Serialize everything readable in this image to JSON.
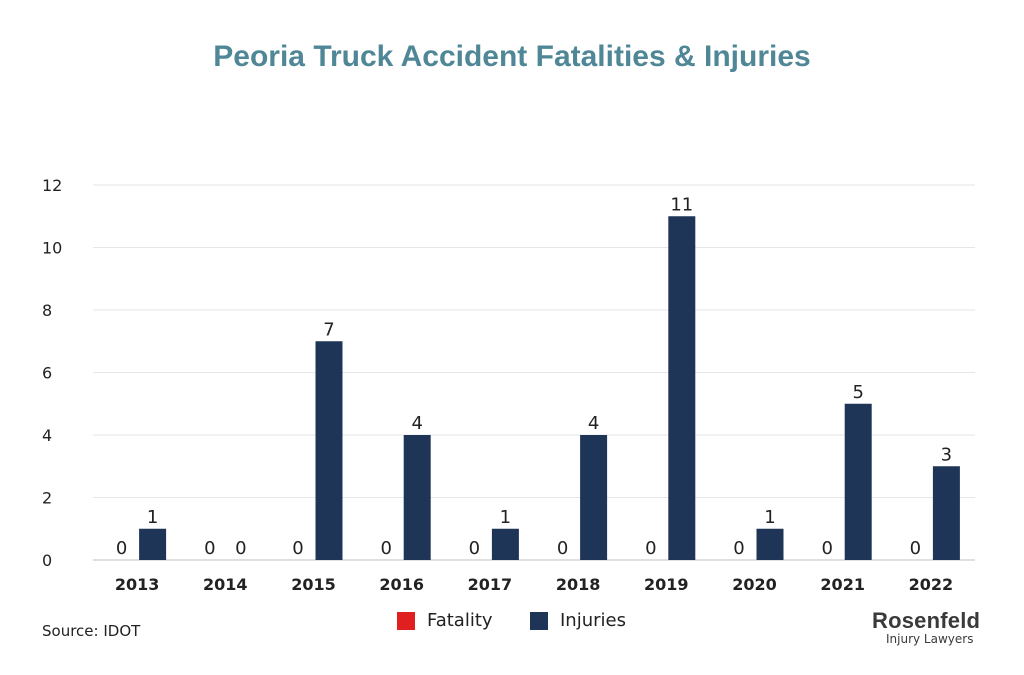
{
  "chart_data": {
    "type": "bar",
    "title": "Peoria Truck Accident Fatalities & Injuries",
    "categories": [
      "2013",
      "2014",
      "2015",
      "2016",
      "2017",
      "2018",
      "2019",
      "2020",
      "2021",
      "2022"
    ],
    "series": [
      {
        "name": "Fatality",
        "color": "#e02020",
        "values": [
          0,
          0,
          0,
          0,
          0,
          0,
          0,
          0,
          0,
          0
        ]
      },
      {
        "name": "Injuries",
        "color": "#1f3557",
        "values": [
          1,
          0,
          7,
          4,
          1,
          4,
          11,
          1,
          5,
          3
        ]
      }
    ],
    "ylim": [
      0,
      12
    ],
    "yticks": [
      0,
      2,
      4,
      6,
      8,
      10,
      12
    ],
    "grid": true,
    "legend": "bottom",
    "data_labels": true
  },
  "footer": {
    "source": "Source: IDOT"
  },
  "brand": {
    "name": "Rosenfeld",
    "sub": "Injury Lawyers"
  }
}
